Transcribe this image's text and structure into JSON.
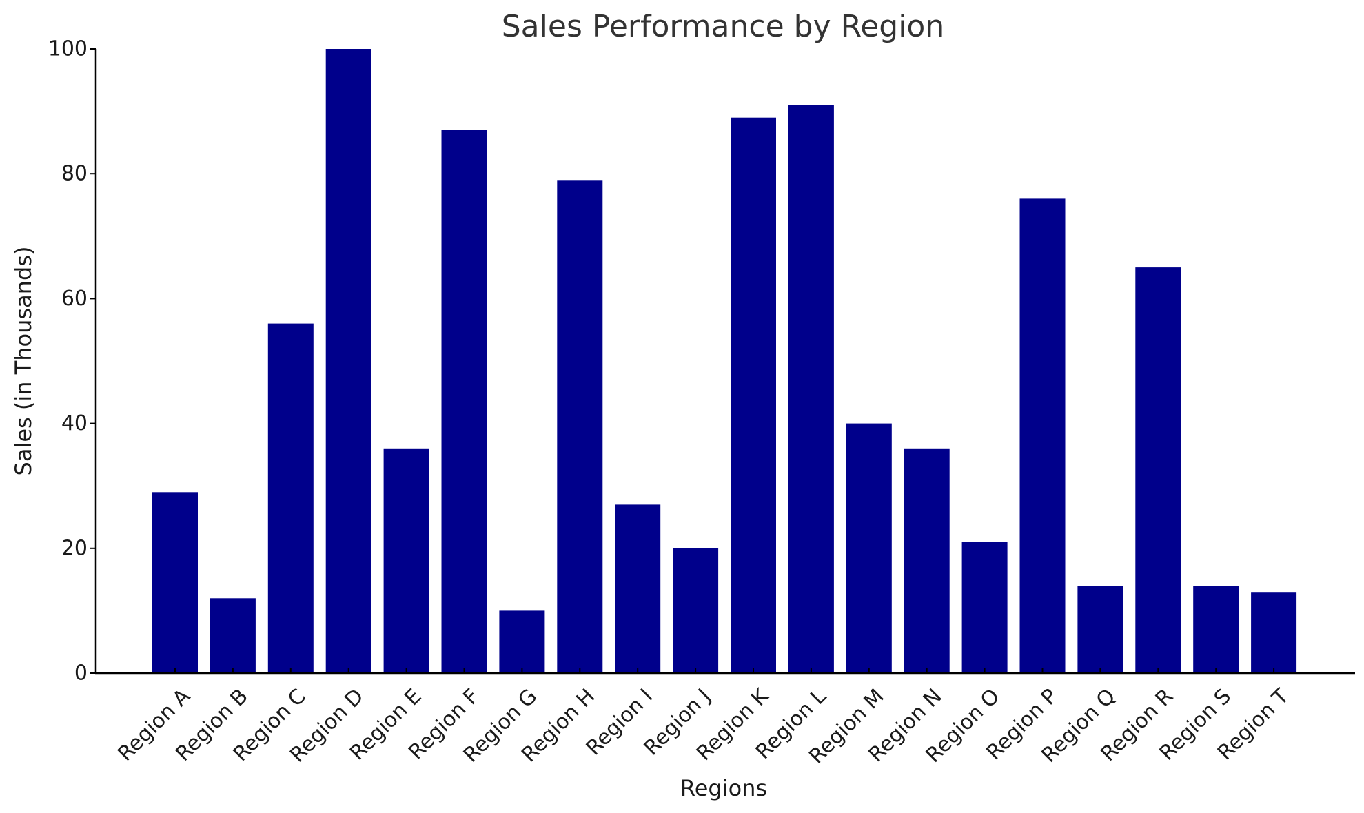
{
  "chart_data": {
    "type": "bar",
    "title": "Sales Performance by Region",
    "xlabel": "Regions",
    "ylabel": "Sales (in Thousands)",
    "categories": [
      "Region A",
      "Region B",
      "Region C",
      "Region D",
      "Region E",
      "Region F",
      "Region G",
      "Region H",
      "Region I",
      "Region J",
      "Region K",
      "Region L",
      "Region M",
      "Region N",
      "Region O",
      "Region P",
      "Region Q",
      "Region R",
      "Region S",
      "Region T"
    ],
    "values": [
      29,
      12,
      56,
      100,
      36,
      87,
      10,
      79,
      27,
      20,
      89,
      91,
      40,
      36,
      21,
      76,
      14,
      65,
      14,
      13
    ],
    "ylim": [
      0,
      100
    ],
    "yticks": [
      0,
      20,
      40,
      60,
      80,
      100
    ],
    "bar_color": "#00008b",
    "grid": false,
    "legend": "none"
  }
}
